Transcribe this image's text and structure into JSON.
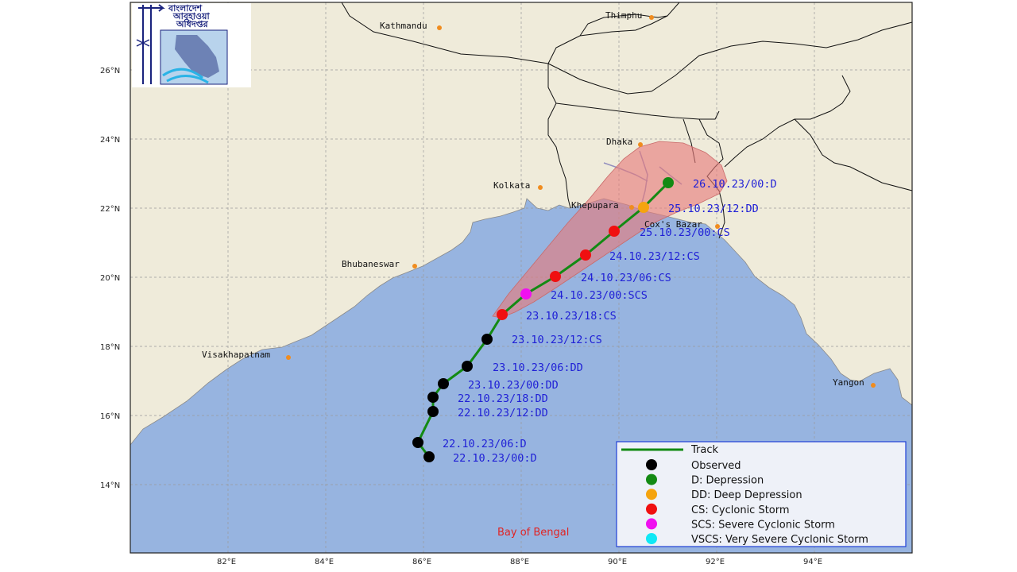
{
  "map": {
    "sea_label": "Bay of Bengal",
    "logo_text": [
      "বাংলাদেশ",
      "আবহাওয়া",
      "অধিদপ্তর"
    ],
    "lat_ticks": [
      "14°N",
      "16°N",
      "18°N",
      "20°N",
      "22°N",
      "24°N",
      "26°N"
    ],
    "lon_ticks": [
      "82°E",
      "84°E",
      "86°E",
      "88°E",
      "90°E",
      "92°E",
      "94°E"
    ],
    "cities": [
      {
        "name": "Kathmandu"
      },
      {
        "name": "Thimphu"
      },
      {
        "name": "Dhaka"
      },
      {
        "name": "Kolkata"
      },
      {
        "name": "Khepupara"
      },
      {
        "name": "Cox's Bazar"
      },
      {
        "name": "Bhubaneswar"
      },
      {
        "name": "Visakhapatnam"
      },
      {
        "name": "Yangon"
      }
    ],
    "track": [
      {
        "label": "22.10.23/00:D",
        "stage": "Observed"
      },
      {
        "label": "22.10.23/06:D",
        "stage": "Observed"
      },
      {
        "label": "22.10.23/12:DD",
        "stage": "Observed"
      },
      {
        "label": "22.10.23/18:DD",
        "stage": "Observed"
      },
      {
        "label": "23.10.23/00:DD",
        "stage": "Observed"
      },
      {
        "label": "23.10.23/06:DD",
        "stage": "Observed"
      },
      {
        "label": "23.10.23/12:CS",
        "stage": "Observed"
      },
      {
        "label": "23.10.23/18:CS",
        "stage": "CS"
      },
      {
        "label": "24.10.23/00:SCS",
        "stage": "SCS"
      },
      {
        "label": "24.10.23/06:CS",
        "stage": "CS"
      },
      {
        "label": "24.10.23/12:CS",
        "stage": "CS"
      },
      {
        "label": "25.10.23/00:CS",
        "stage": "CS"
      },
      {
        "label": "25.10.23/12:DD",
        "stage": "DD"
      },
      {
        "label": "26.10.23/00:D",
        "stage": "D"
      }
    ],
    "legend": {
      "track": "Track",
      "items": [
        {
          "key": "Observed",
          "label": "Observed",
          "color": "#000000"
        },
        {
          "key": "D",
          "label": "D: Depression",
          "color": "#138a13"
        },
        {
          "key": "DD",
          "label": "DD: Deep Depression",
          "color": "#f5a40f"
        },
        {
          "key": "CS",
          "label": "CS: Cyclonic Storm",
          "color": "#f01010"
        },
        {
          "key": "SCS",
          "label": "SCS: Severe Cyclonic Storm",
          "color": "#f010f0"
        },
        {
          "key": "VSCS",
          "label": "VSCS: Very Severe Cyclonic Storm",
          "color": "#10e8f5"
        }
      ]
    },
    "colors": {
      "land": "#efebda",
      "sea": "#97b4e0",
      "track": "#138a13",
      "cone": "#e77b7b",
      "city_dot": "#f08c1e",
      "label": "#1f1fd6"
    }
  }
}
